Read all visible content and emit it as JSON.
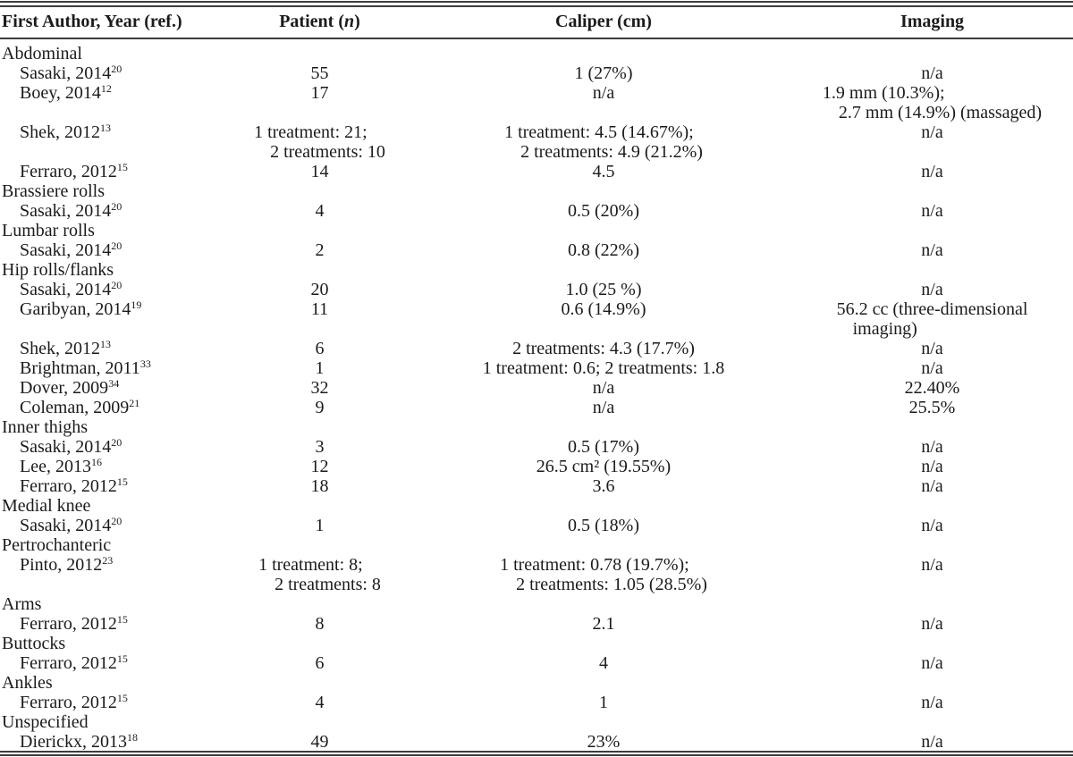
{
  "table": {
    "columns": [
      {
        "label": "First Author, Year (ref.)"
      },
      {
        "label": "Patient (n)",
        "pre": "Patient (",
        "italic": "n",
        "post": ")"
      },
      {
        "label": "Caliper (cm)"
      },
      {
        "label": "Imaging"
      }
    ],
    "sections": [
      {
        "heading": "Abdominal",
        "studies": [
          {
            "author": "Sasaki, 2014",
            "ref": "20",
            "patient": [
              "55"
            ],
            "caliper": [
              "1 (27%)"
            ],
            "imaging": [
              "n/a"
            ]
          },
          {
            "author": "Boey, 2014",
            "ref": "12",
            "patient": [
              "17"
            ],
            "caliper": [
              "n/a"
            ],
            "imaging": [
              "1.9 mm (10.3%);",
              "2.7 mm (14.9%) (massaged)"
            ]
          },
          {
            "author": "Shek, 2012",
            "ref": "13",
            "patient": [
              "1 treatment: 21;",
              "2 treatments: 10"
            ],
            "caliper": [
              "1 treatment: 4.5 (14.67%);",
              "2 treatments: 4.9 (21.2%)"
            ],
            "imaging": [
              "n/a"
            ]
          },
          {
            "author": "Ferraro, 2012",
            "ref": "15",
            "patient": [
              "14"
            ],
            "caliper": [
              "4.5"
            ],
            "imaging": [
              "n/a"
            ]
          }
        ]
      },
      {
        "heading": "Brassiere rolls",
        "studies": [
          {
            "author": "Sasaki, 2014",
            "ref": "20",
            "patient": [
              "4"
            ],
            "caliper": [
              "0.5 (20%)"
            ],
            "imaging": [
              "n/a"
            ]
          }
        ]
      },
      {
        "heading": "Lumbar rolls",
        "studies": [
          {
            "author": "Sasaki, 2014",
            "ref": "20",
            "patient": [
              "2"
            ],
            "caliper": [
              "0.8 (22%)"
            ],
            "imaging": [
              "n/a"
            ]
          }
        ]
      },
      {
        "heading": "Hip rolls/flanks",
        "studies": [
          {
            "author": "Sasaki, 2014",
            "ref": "20",
            "patient": [
              "20"
            ],
            "caliper": [
              "1.0 (25 %)"
            ],
            "imaging": [
              "n/a"
            ]
          },
          {
            "author": "Garibyan, 2014",
            "ref": "19",
            "patient": [
              "11"
            ],
            "caliper": [
              "0.6 (14.9%)"
            ],
            "imaging": [
              "56.2 cc (three-dimensional",
              "imaging)"
            ]
          },
          {
            "author": "Shek, 2012",
            "ref": "13",
            "patient": [
              "6"
            ],
            "caliper": [
              "2 treatments: 4.3 (17.7%)"
            ],
            "imaging": [
              "n/a"
            ]
          },
          {
            "author": "Brightman, 2011",
            "ref": "33",
            "patient": [
              "1"
            ],
            "caliper": [
              "1 treatment: 0.6; 2 treatments: 1.8"
            ],
            "imaging": [
              "n/a"
            ]
          },
          {
            "author": "Dover, 2009",
            "ref": "34",
            "patient": [
              "32"
            ],
            "caliper": [
              "n/a"
            ],
            "imaging": [
              "22.40%"
            ]
          },
          {
            "author": "Coleman, 2009",
            "ref": "21",
            "patient": [
              "9"
            ],
            "caliper": [
              "n/a"
            ],
            "imaging": [
              "25.5%"
            ]
          }
        ]
      },
      {
        "heading": "Inner thighs",
        "studies": [
          {
            "author": "Sasaki, 2014",
            "ref": "20",
            "patient": [
              "3"
            ],
            "caliper": [
              "0.5 (17%)"
            ],
            "imaging": [
              "n/a"
            ]
          },
          {
            "author": "Lee, 2013",
            "ref": "16",
            "patient": [
              "12"
            ],
            "caliper": [
              "26.5 cm² (19.55%)"
            ],
            "imaging": [
              "n/a"
            ]
          },
          {
            "author": "Ferraro, 2012",
            "ref": "15",
            "patient": [
              "18"
            ],
            "caliper": [
              "3.6"
            ],
            "imaging": [
              "n/a"
            ]
          }
        ]
      },
      {
        "heading": "Medial knee",
        "studies": [
          {
            "author": "Sasaki, 2014",
            "ref": "20",
            "patient": [
              "1"
            ],
            "caliper": [
              "0.5 (18%)"
            ],
            "imaging": [
              "n/a"
            ]
          }
        ]
      },
      {
        "heading": "Pertrochanteric",
        "studies": [
          {
            "author": "Pinto, 2012",
            "ref": "23",
            "patient": [
              "1 treatment: 8;",
              "2 treatments: 8"
            ],
            "caliper": [
              "1 treatment: 0.78 (19.7%);",
              "2 treatments: 1.05 (28.5%)"
            ],
            "imaging": [
              "n/a"
            ]
          }
        ]
      },
      {
        "heading": "Arms",
        "studies": [
          {
            "author": "Ferraro, 2012",
            "ref": "15",
            "patient": [
              "8"
            ],
            "caliper": [
              "2.1"
            ],
            "imaging": [
              "n/a"
            ]
          }
        ]
      },
      {
        "heading": "Buttocks",
        "studies": [
          {
            "author": "Ferraro, 2012",
            "ref": "15",
            "patient": [
              "6"
            ],
            "caliper": [
              "4"
            ],
            "imaging": [
              "n/a"
            ]
          }
        ]
      },
      {
        "heading": "Ankles",
        "studies": [
          {
            "author": "Ferraro, 2012",
            "ref": "15",
            "patient": [
              "4"
            ],
            "caliper": [
              "1"
            ],
            "imaging": [
              "n/a"
            ]
          }
        ]
      },
      {
        "heading": "Unspecified",
        "studies": [
          {
            "author": "Dierickx, 2013",
            "ref": "18",
            "patient": [
              "49"
            ],
            "caliper": [
              "23%"
            ],
            "imaging": [
              "n/a"
            ]
          }
        ]
      }
    ]
  }
}
